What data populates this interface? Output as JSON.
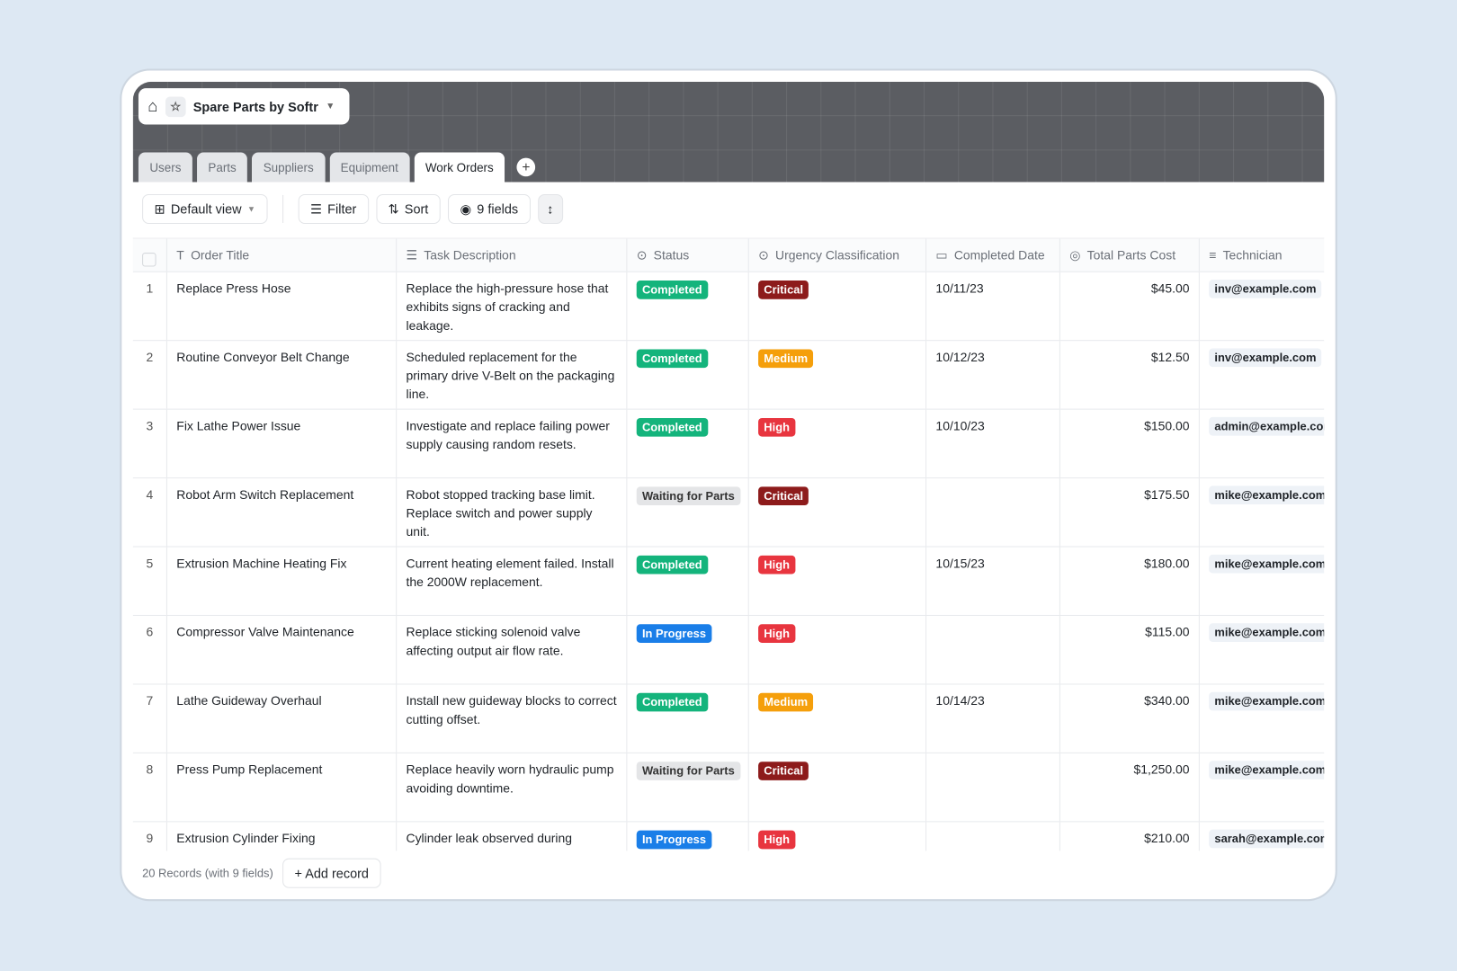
{
  "app": {
    "title": "Spare Parts by Softr"
  },
  "tabs": [
    {
      "label": "Users"
    },
    {
      "label": "Parts"
    },
    {
      "label": "Suppliers"
    },
    {
      "label": "Equipment"
    },
    {
      "label": "Work Orders",
      "active": true
    }
  ],
  "toolbar": {
    "view": "Default view",
    "filter": "Filter",
    "sort": "Sort",
    "fields": "9 fields"
  },
  "columns": [
    "Order Title",
    "Task Description",
    "Status",
    "Urgency Classification",
    "Completed Date",
    "Total Parts Cost",
    "Technician"
  ],
  "status_colors": {
    "Completed": "#14b47c",
    "Waiting for Parts": "#e4e5e7",
    "In Progress": "#1a7ee8"
  },
  "urgency_colors": {
    "Critical": "#8d1b1b",
    "Medium": "#f59f0b",
    "High": "#e8353f"
  },
  "rows": [
    {
      "n": "1",
      "title": "Replace Press Hose",
      "desc": "Replace the high-pressure hose that exhibits signs of cracking and leakage.",
      "status": "Completed",
      "urgency": "Critical",
      "date": "10/11/23",
      "cost": "$45.00",
      "tech": "inv@example.com"
    },
    {
      "n": "2",
      "title": "Routine Conveyor Belt Change",
      "desc": "Scheduled replacement for the primary drive V-Belt on the packaging line.",
      "status": "Completed",
      "urgency": "Medium",
      "date": "10/12/23",
      "cost": "$12.50",
      "tech": "inv@example.com"
    },
    {
      "n": "3",
      "title": "Fix Lathe Power Issue",
      "desc": "Investigate and replace failing power supply causing random resets.",
      "status": "Completed",
      "urgency": "High",
      "date": "10/10/23",
      "cost": "$150.00",
      "tech": "admin@example.com"
    },
    {
      "n": "4",
      "title": "Robot Arm Switch Replacement",
      "desc": "Robot stopped tracking base limit. Replace switch and power supply unit.",
      "status": "Waiting for Parts",
      "urgency": "Critical",
      "date": "",
      "cost": "$175.50",
      "tech": "mike@example.com"
    },
    {
      "n": "5",
      "title": "Extrusion Machine Heating Fix",
      "desc": "Current heating element failed. Install the 2000W replacement.",
      "status": "Completed",
      "urgency": "High",
      "date": "10/15/23",
      "cost": "$180.00",
      "tech": "mike@example.com"
    },
    {
      "n": "6",
      "title": "Compressor Valve Maintenance",
      "desc": "Replace sticking solenoid valve affecting output air flow rate.",
      "status": "In Progress",
      "urgency": "High",
      "date": "",
      "cost": "$115.00",
      "tech": "mike@example.com"
    },
    {
      "n": "7",
      "title": "Lathe Guideway Overhaul",
      "desc": "Install new guideway blocks to correct cutting offset.",
      "status": "Completed",
      "urgency": "Medium",
      "date": "10/14/23",
      "cost": "$340.00",
      "tech": "mike@example.com"
    },
    {
      "n": "8",
      "title": "Press Pump Replacement",
      "desc": "Replace heavily worn hydraulic pump avoiding downtime.",
      "status": "Waiting for Parts",
      "urgency": "Critical",
      "date": "",
      "cost": "$1,250.00",
      "tech": "mike@example.com"
    },
    {
      "n": "9",
      "title": "Extrusion Cylinder Fixing",
      "desc": "Cylinder leak observed during",
      "status": "In Progress",
      "urgency": "High",
      "date": "",
      "cost": "$210.00",
      "tech": "sarah@example.com"
    }
  ],
  "footer": {
    "records": "20 Records (with 9 fields)",
    "add": "+ Add record"
  }
}
